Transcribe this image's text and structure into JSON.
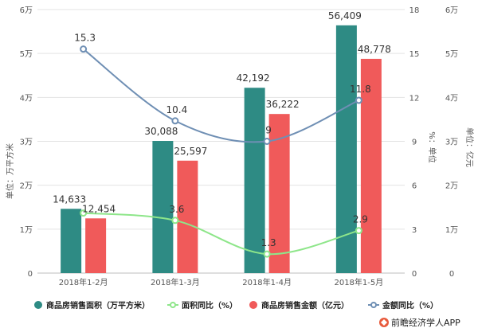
{
  "chart_data": {
    "type": "bar",
    "categories": [
      "2018年1-2月",
      "2018年1-3月",
      "2018年1-4月",
      "2018年1-5月"
    ],
    "series": [
      {
        "name": "商品房销售面积（万平方米）",
        "kind": "bar",
        "axis": "left",
        "color": "#2e8b84",
        "values": [
          14633,
          30088,
          42192,
          56409
        ]
      },
      {
        "name": "商品房销售金额（亿元）",
        "kind": "bar",
        "axis": "right",
        "color": "#f05a5a",
        "values": [
          12454,
          25597,
          36222,
          48778
        ]
      },
      {
        "name": "面积同比（%）",
        "kind": "line",
        "axis": "percent",
        "color": "#8ee68a",
        "values": [
          4.1,
          3.6,
          1.3,
          2.9
        ]
      },
      {
        "name": "金额同比（%）",
        "kind": "line",
        "axis": "percent",
        "color": "#6f8fb4",
        "values": [
          15.3,
          10.4,
          9,
          11.8
        ]
      }
    ],
    "labels": {
      "area": [
        "14,633",
        "30,088",
        "42,192",
        "56,409"
      ],
      "amount": [
        "12,454",
        "25,597",
        "36,222",
        "48,778"
      ],
      "area_yoy": [
        "",
        "3.6",
        "1.3",
        "2.9"
      ],
      "amount_yoy": [
        "15.3",
        "10.4",
        "9",
        "11.8"
      ]
    },
    "left_axis": {
      "label": "单位：万平方米",
      "ticks": [
        "0",
        "1万",
        "2万",
        "3万",
        "4万",
        "5万",
        "6万"
      ],
      "range": [
        0,
        60000
      ]
    },
    "percent_axis": {
      "label": "%：单位",
      "ticks": [
        "0",
        "3",
        "6",
        "9",
        "12",
        "15",
        "18"
      ],
      "range": [
        0,
        18
      ]
    },
    "right_axis": {
      "label": "单位：亿元",
      "ticks": [
        "0",
        "1万",
        "2万",
        "3万",
        "4万",
        "5万",
        "6万"
      ],
      "range": [
        0,
        60000
      ]
    },
    "grid": true,
    "legend_position": "bottom"
  },
  "source": "前瞻经济学人APP"
}
